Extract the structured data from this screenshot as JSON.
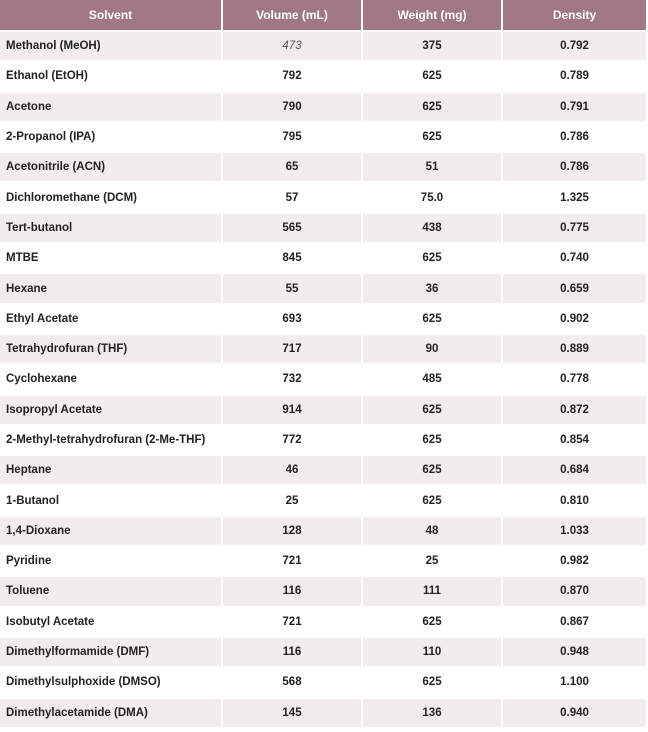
{
  "table": {
    "headers": [
      "Solvent",
      "Volume (mL)",
      "Weight (mg)",
      "Density"
    ],
    "rows": [
      [
        "Methanol (MeOH)",
        "473",
        "375",
        "0.792"
      ],
      [
        "Ethanol (EtOH)",
        "792",
        "625",
        "0.789"
      ],
      [
        "Acetone",
        "790",
        "625",
        "0.791"
      ],
      [
        "2-Propanol (IPA)",
        "795",
        "625",
        "0.786"
      ],
      [
        "Acetonitrile (ACN)",
        "65",
        "51",
        "0.786"
      ],
      [
        "Dichloromethane (DCM)",
        "57",
        "75.0",
        "1.325"
      ],
      [
        "Tert-butanol",
        "565",
        "438",
        "0.775"
      ],
      [
        "MTBE",
        "845",
        "625",
        "0.740"
      ],
      [
        "Hexane",
        "55",
        "36",
        "0.659"
      ],
      [
        "Ethyl Acetate",
        "693",
        "625",
        "0.902"
      ],
      [
        "Tetrahydrofuran (THF)",
        "717",
        "90",
        "0.889"
      ],
      [
        "Cyclohexane",
        "732",
        "485",
        "0.778"
      ],
      [
        "Isopropyl Acetate",
        "914",
        "625",
        "0.872"
      ],
      [
        "2-Methyl-tetrahydrofuran (2-Me-THF)",
        "772",
        "625",
        "0.854"
      ],
      [
        "Heptane",
        "46",
        "625",
        "0.684"
      ],
      [
        "1-Butanol",
        "25",
        "625",
        "0.810"
      ],
      [
        "1,4-Dioxane",
        "128",
        "48",
        "1.033"
      ],
      [
        "Pyridine",
        "721",
        "25",
        "0.982"
      ],
      [
        "Toluene",
        "116",
        "111",
        "0.870"
      ],
      [
        "Isobutyl Acetate",
        "721",
        "625",
        "0.867"
      ],
      [
        "Dimethylformamide (DMF)",
        "116",
        "110",
        "0.948"
      ],
      [
        "Dimethylsulphoxide (DMSO)",
        "568",
        "625",
        "1.100"
      ],
      [
        "Dimethylacetamide (DMA)",
        "145",
        "136",
        "0.940"
      ]
    ]
  },
  "colors": {
    "header_bg": "#a07882",
    "stripe_bg": "#f1edee"
  }
}
